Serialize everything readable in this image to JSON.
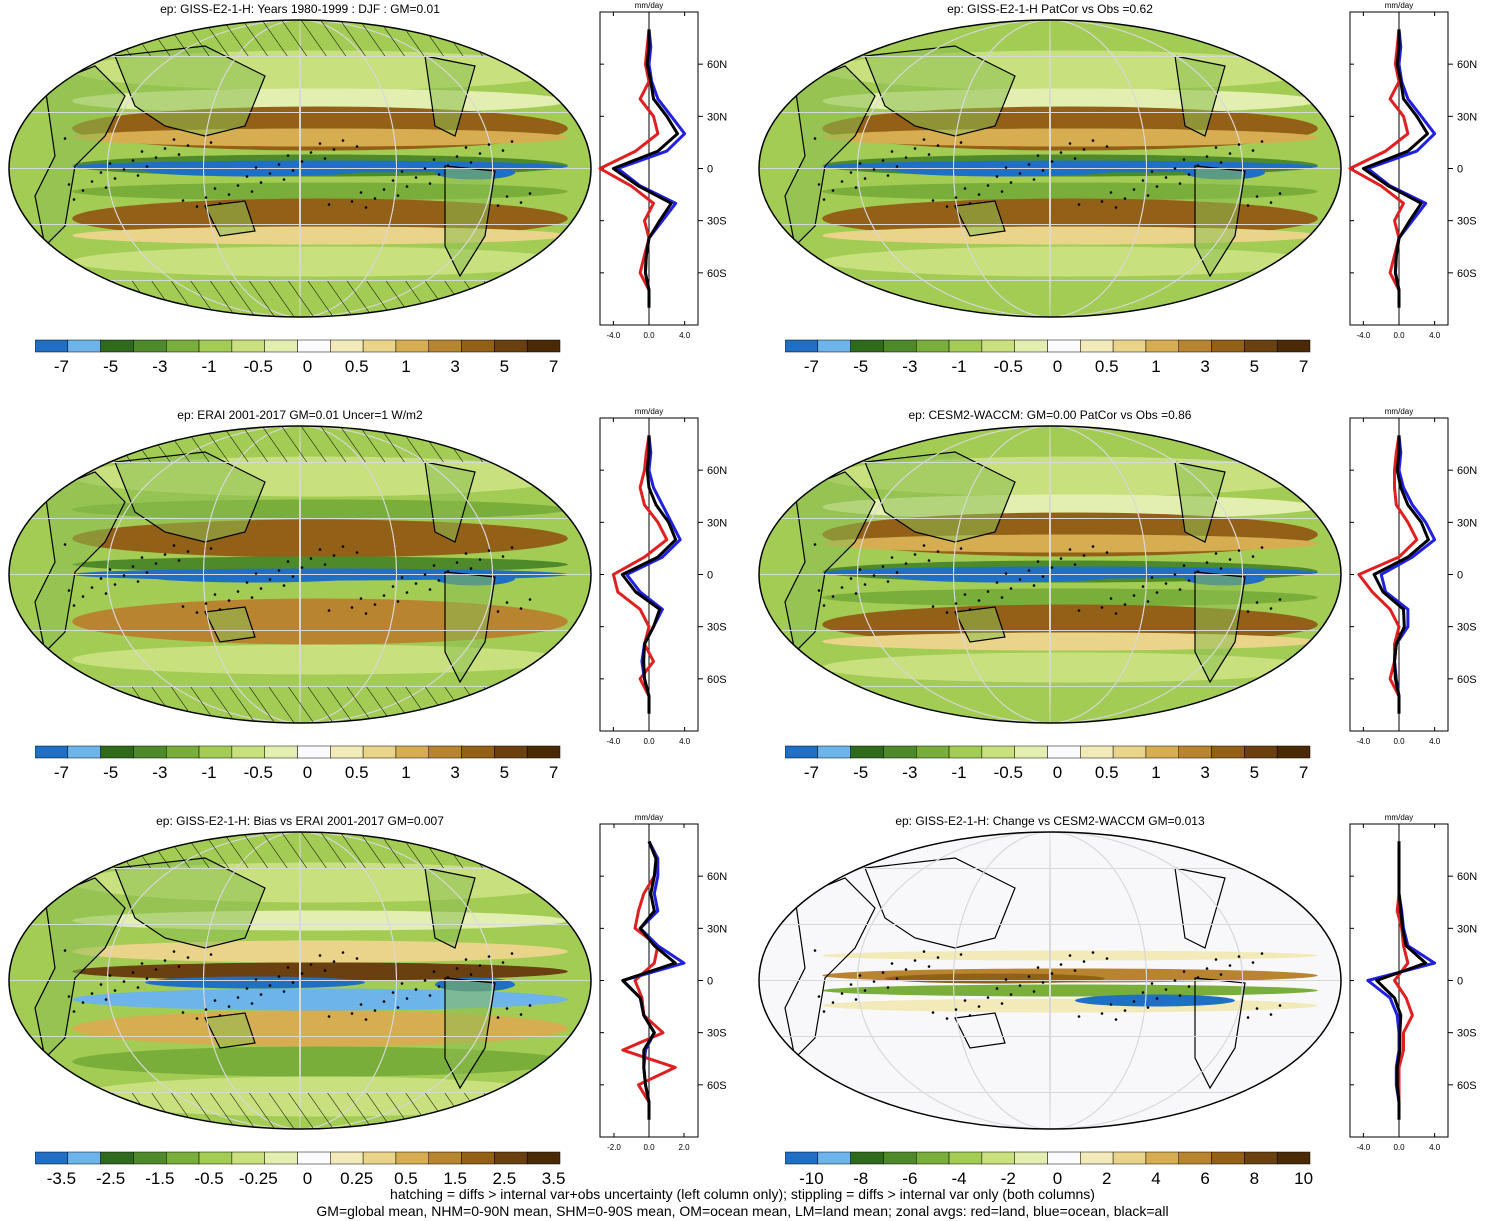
{
  "panels": [
    {
      "title": "ep: GISS-E2-1-H: Years 1980-1999 : DJF : GM=0.01",
      "colorbar_labels": [
        "-7",
        "-5",
        "-3",
        "-1",
        "-0.5",
        "0",
        "0.5",
        "1",
        "3",
        "5",
        "7"
      ],
      "zonal_ticks": [
        "-4.0",
        "0.0",
        "4.0"
      ],
      "zonal_xlim": [
        -5.5,
        5.5
      ],
      "hatching": true,
      "variant": "model"
    },
    {
      "title": "ep: GISS-E2-1-H PatCor vs Obs =0.62",
      "colorbar_labels": [
        "-7",
        "-5",
        "-3",
        "-1",
        "-0.5",
        "0",
        "0.5",
        "1",
        "3",
        "5",
        "7"
      ],
      "zonal_ticks": [
        "-4.0",
        "0.0",
        "4.0"
      ],
      "zonal_xlim": [
        -5.5,
        5.5
      ],
      "hatching": false,
      "variant": "model"
    },
    {
      "title": "ep: ERAI 2001-2017 GM=0.01 Uncer=1 W/m2",
      "colorbar_labels": [
        "-7",
        "-5",
        "-3",
        "-1",
        "-0.5",
        "0",
        "0.5",
        "1",
        "3",
        "5",
        "7"
      ],
      "zonal_ticks": [
        "-4.0",
        "0.0",
        "4.0"
      ],
      "zonal_xlim": [
        -5.5,
        5.5
      ],
      "hatching": true,
      "variant": "obs"
    },
    {
      "title": "ep: CESM2-WACCM: GM=0.00 PatCor vs Obs =0.86",
      "colorbar_labels": [
        "-7",
        "-5",
        "-3",
        "-1",
        "-0.5",
        "0",
        "0.5",
        "1",
        "3",
        "5",
        "7"
      ],
      "zonal_ticks": [
        "-4.0",
        "0.0",
        "4.0"
      ],
      "zonal_xlim": [
        -5.5,
        5.5
      ],
      "hatching": false,
      "variant": "model"
    },
    {
      "title": "ep: GISS-E2-1-H: Bias vs ERAI 2001-2017 GM=0.007",
      "colorbar_labels": [
        "-3.5",
        "-2.5",
        "-1.5",
        "-0.5",
        "-0.25",
        "0",
        "0.25",
        "0.5",
        "1.5",
        "2.5",
        "3.5"
      ],
      "zonal_ticks": [
        "-2.0",
        "0.0",
        "2.0"
      ],
      "zonal_xlim": [
        -2.8,
        2.8
      ],
      "hatching": true,
      "variant": "bias"
    },
    {
      "title": "ep: GISS-E2-1-H: Change vs CESM2-WACCM GM=0.013",
      "colorbar_labels": [
        "-10",
        "-8",
        "-6",
        "-4",
        "-2",
        "0",
        "2",
        "4",
        "6",
        "8",
        "10"
      ],
      "zonal_ticks": [
        "-4.0",
        "0.0",
        "4.0"
      ],
      "zonal_xlim": [
        -5.5,
        5.5
      ],
      "hatching": false,
      "variant": "change"
    }
  ],
  "zonal_unit": "mm/day",
  "lat_labels": [
    "60N",
    "30N",
    "0",
    "30S",
    "60S"
  ],
  "colors": {
    "palette": [
      "#1f6fc4",
      "#6cb4ea",
      "#2f6a1c",
      "#4f8a2a",
      "#7aae3a",
      "#a3cc55",
      "#c8e07e",
      "#e2efb0",
      "#fbfbfd",
      "#f2eab8",
      "#ead48a",
      "#d6ad50",
      "#b98430",
      "#936018",
      "#6a4010",
      "#4a2a06"
    ],
    "land": "#e02020",
    "ocean": "#2020e0",
    "all": "#000000"
  },
  "chart_data": [
    {
      "type": "heatmap",
      "title": "ep: GISS-E2-1-H: Years 1980-1999 : DJF : GM=0.01",
      "zonal_lat": [
        80,
        70,
        60,
        50,
        40,
        30,
        20,
        10,
        0,
        -10,
        -20,
        -30,
        -40,
        -50,
        -60,
        -70,
        -80
      ],
      "series": [
        {
          "name": "land",
          "values": [
            0.0,
            -0.2,
            -0.4,
            0.0,
            -1.0,
            0.5,
            1.0,
            -1.5,
            -5.5,
            -2.0,
            0.5,
            -0.5,
            0.0,
            -0.5,
            -1.0,
            0.0,
            0.0
          ]
        },
        {
          "name": "ocean",
          "values": [
            0.0,
            0.2,
            0.0,
            0.3,
            1.0,
            2.5,
            4.0,
            2.0,
            -3.5,
            -1.0,
            3.0,
            1.5,
            0.0,
            -0.3,
            -0.4,
            0.0,
            0.0
          ]
        },
        {
          "name": "all",
          "values": [
            0.0,
            0.0,
            -0.2,
            0.2,
            0.5,
            2.0,
            3.2,
            1.0,
            -4.0,
            -1.2,
            2.5,
            1.2,
            0.0,
            -0.3,
            -0.4,
            0.0,
            0.0
          ]
        }
      ]
    },
    {
      "type": "heatmap",
      "title": "ep: GISS-E2-1-H PatCor vs Obs =0.62",
      "zonal_lat": [
        80,
        70,
        60,
        50,
        40,
        30,
        20,
        10,
        0,
        -10,
        -20,
        -30,
        -40,
        -50,
        -60,
        -70,
        -80
      ],
      "series": [
        {
          "name": "land",
          "values": [
            0.0,
            -0.2,
            -0.4,
            0.0,
            -1.0,
            0.5,
            1.0,
            -1.5,
            -5.5,
            -2.0,
            0.5,
            -0.5,
            0.0,
            -0.5,
            -1.0,
            0.0,
            0.0
          ]
        },
        {
          "name": "ocean",
          "values": [
            0.0,
            0.2,
            0.0,
            0.3,
            1.0,
            2.5,
            4.0,
            2.0,
            -3.5,
            -1.0,
            3.0,
            1.5,
            0.0,
            -0.3,
            -0.4,
            0.0,
            0.0
          ]
        },
        {
          "name": "all",
          "values": [
            0.0,
            0.0,
            -0.2,
            0.2,
            0.5,
            2.0,
            3.2,
            1.0,
            -4.0,
            -1.2,
            2.5,
            1.2,
            0.0,
            -0.3,
            -0.4,
            0.0,
            0.0
          ]
        }
      ]
    },
    {
      "type": "heatmap",
      "title": "ep: ERAI 2001-2017 GM=0.01 Uncer=1 W/m2",
      "zonal_lat": [
        80,
        70,
        60,
        50,
        40,
        30,
        20,
        10,
        0,
        -10,
        -20,
        -30,
        -40,
        -50,
        -60,
        -70,
        -80
      ],
      "series": [
        {
          "name": "land",
          "values": [
            0.0,
            -0.3,
            -0.5,
            -1.0,
            -0.5,
            1.0,
            2.0,
            -0.5,
            -4.0,
            -3.5,
            -1.0,
            0.0,
            -0.5,
            0.5,
            -1.0,
            0.0,
            0.0
          ]
        },
        {
          "name": "ocean",
          "values": [
            0.0,
            0.2,
            0.0,
            0.5,
            1.5,
            2.5,
            3.5,
            1.5,
            -2.5,
            -1.0,
            1.5,
            0.5,
            -0.5,
            -0.8,
            -0.5,
            0.0,
            0.0
          ]
        },
        {
          "name": "all",
          "values": [
            0.0,
            0.0,
            -0.2,
            0.0,
            0.8,
            2.2,
            3.0,
            1.0,
            -3.0,
            -1.5,
            1.2,
            0.5,
            -0.5,
            -0.6,
            -0.5,
            0.0,
            0.0
          ]
        }
      ]
    },
    {
      "type": "heatmap",
      "title": "ep: CESM2-WACCM: GM=0.00 PatCor vs Obs =0.86",
      "zonal_lat": [
        80,
        70,
        60,
        50,
        40,
        30,
        20,
        10,
        0,
        -10,
        -20,
        -30,
        -40,
        -50,
        -60,
        -70,
        -80
      ],
      "series": [
        {
          "name": "land",
          "values": [
            0.0,
            -0.3,
            -0.5,
            -0.5,
            -0.3,
            1.0,
            2.0,
            0.0,
            -4.5,
            -3.0,
            -1.0,
            0.0,
            -0.5,
            -0.5,
            -1.0,
            0.0,
            0.0
          ]
        },
        {
          "name": "ocean",
          "values": [
            0.0,
            0.2,
            0.0,
            0.5,
            1.5,
            3.0,
            4.0,
            1.5,
            -2.0,
            -1.5,
            1.0,
            1.0,
            -0.3,
            -0.5,
            -0.3,
            0.0,
            0.0
          ]
        },
        {
          "name": "all",
          "values": [
            0.0,
            0.0,
            -0.2,
            0.2,
            1.0,
            2.5,
            3.3,
            1.0,
            -2.8,
            -1.8,
            0.5,
            0.6,
            -0.3,
            -0.5,
            -0.4,
            0.0,
            0.0
          ]
        }
      ]
    },
    {
      "type": "heatmap",
      "title": "ep: GISS-E2-1-H: Bias vs ERAI 2001-2017 GM=0.007",
      "zonal_lat": [
        80,
        70,
        60,
        50,
        40,
        30,
        20,
        10,
        0,
        -10,
        -20,
        -30,
        -40,
        -50,
        -60,
        -70,
        -80
      ],
      "series": [
        {
          "name": "land",
          "values": [
            0.0,
            0.5,
            0.3,
            -0.3,
            -0.6,
            -0.8,
            0.5,
            0.3,
            -0.8,
            -0.4,
            -0.3,
            0.8,
            -1.5,
            1.5,
            -0.6,
            0.0,
            0.0
          ]
        },
        {
          "name": "ocean",
          "values": [
            0.0,
            0.5,
            0.5,
            0.3,
            0.5,
            -0.5,
            0.5,
            2.0,
            -1.5,
            -0.5,
            -0.3,
            0.3,
            -0.2,
            -0.3,
            -0.2,
            0.0,
            0.0
          ]
        },
        {
          "name": "all",
          "values": [
            0.0,
            0.4,
            0.3,
            0.1,
            0.3,
            -0.5,
            0.3,
            1.5,
            -1.5,
            -0.5,
            -0.3,
            0.3,
            -0.3,
            -0.3,
            -0.2,
            0.0,
            0.0
          ]
        }
      ]
    },
    {
      "type": "heatmap",
      "title": "ep: GISS-E2-1-H: Change vs CESM2-WACCM GM=0.013",
      "zonal_lat": [
        80,
        70,
        60,
        50,
        40,
        30,
        20,
        10,
        0,
        -10,
        -20,
        -30,
        -40,
        -50,
        -60,
        -70,
        -80
      ],
      "series": [
        {
          "name": "land",
          "values": [
            0.0,
            0.0,
            0.0,
            0.0,
            -0.2,
            0.3,
            0.5,
            1.0,
            -0.5,
            0.8,
            1.5,
            0.5,
            0.5,
            0.0,
            0.0,
            0.0,
            0.0
          ]
        },
        {
          "name": "ocean",
          "values": [
            0.0,
            0.0,
            0.0,
            0.0,
            0.3,
            0.5,
            1.0,
            4.0,
            -3.5,
            -1.0,
            -0.2,
            0.0,
            0.0,
            -0.3,
            -0.3,
            0.0,
            0.0
          ]
        },
        {
          "name": "all",
          "values": [
            0.0,
            0.0,
            0.0,
            0.0,
            0.2,
            0.4,
            0.8,
            3.0,
            -2.5,
            -0.5,
            0.2,
            0.1,
            0.1,
            -0.2,
            -0.2,
            0.0,
            0.0
          ]
        }
      ]
    }
  ],
  "footer": {
    "line1": "hatching = diffs > internal var+obs uncertainty (left column only); stippling = diffs > internal var only (both columns)",
    "line2": "GM=global mean, NHM=0-90N mean, SHM=0-90S mean, OM=ocean mean, LM=land mean; zonal avgs: red=land, blue=ocean, black=all"
  }
}
